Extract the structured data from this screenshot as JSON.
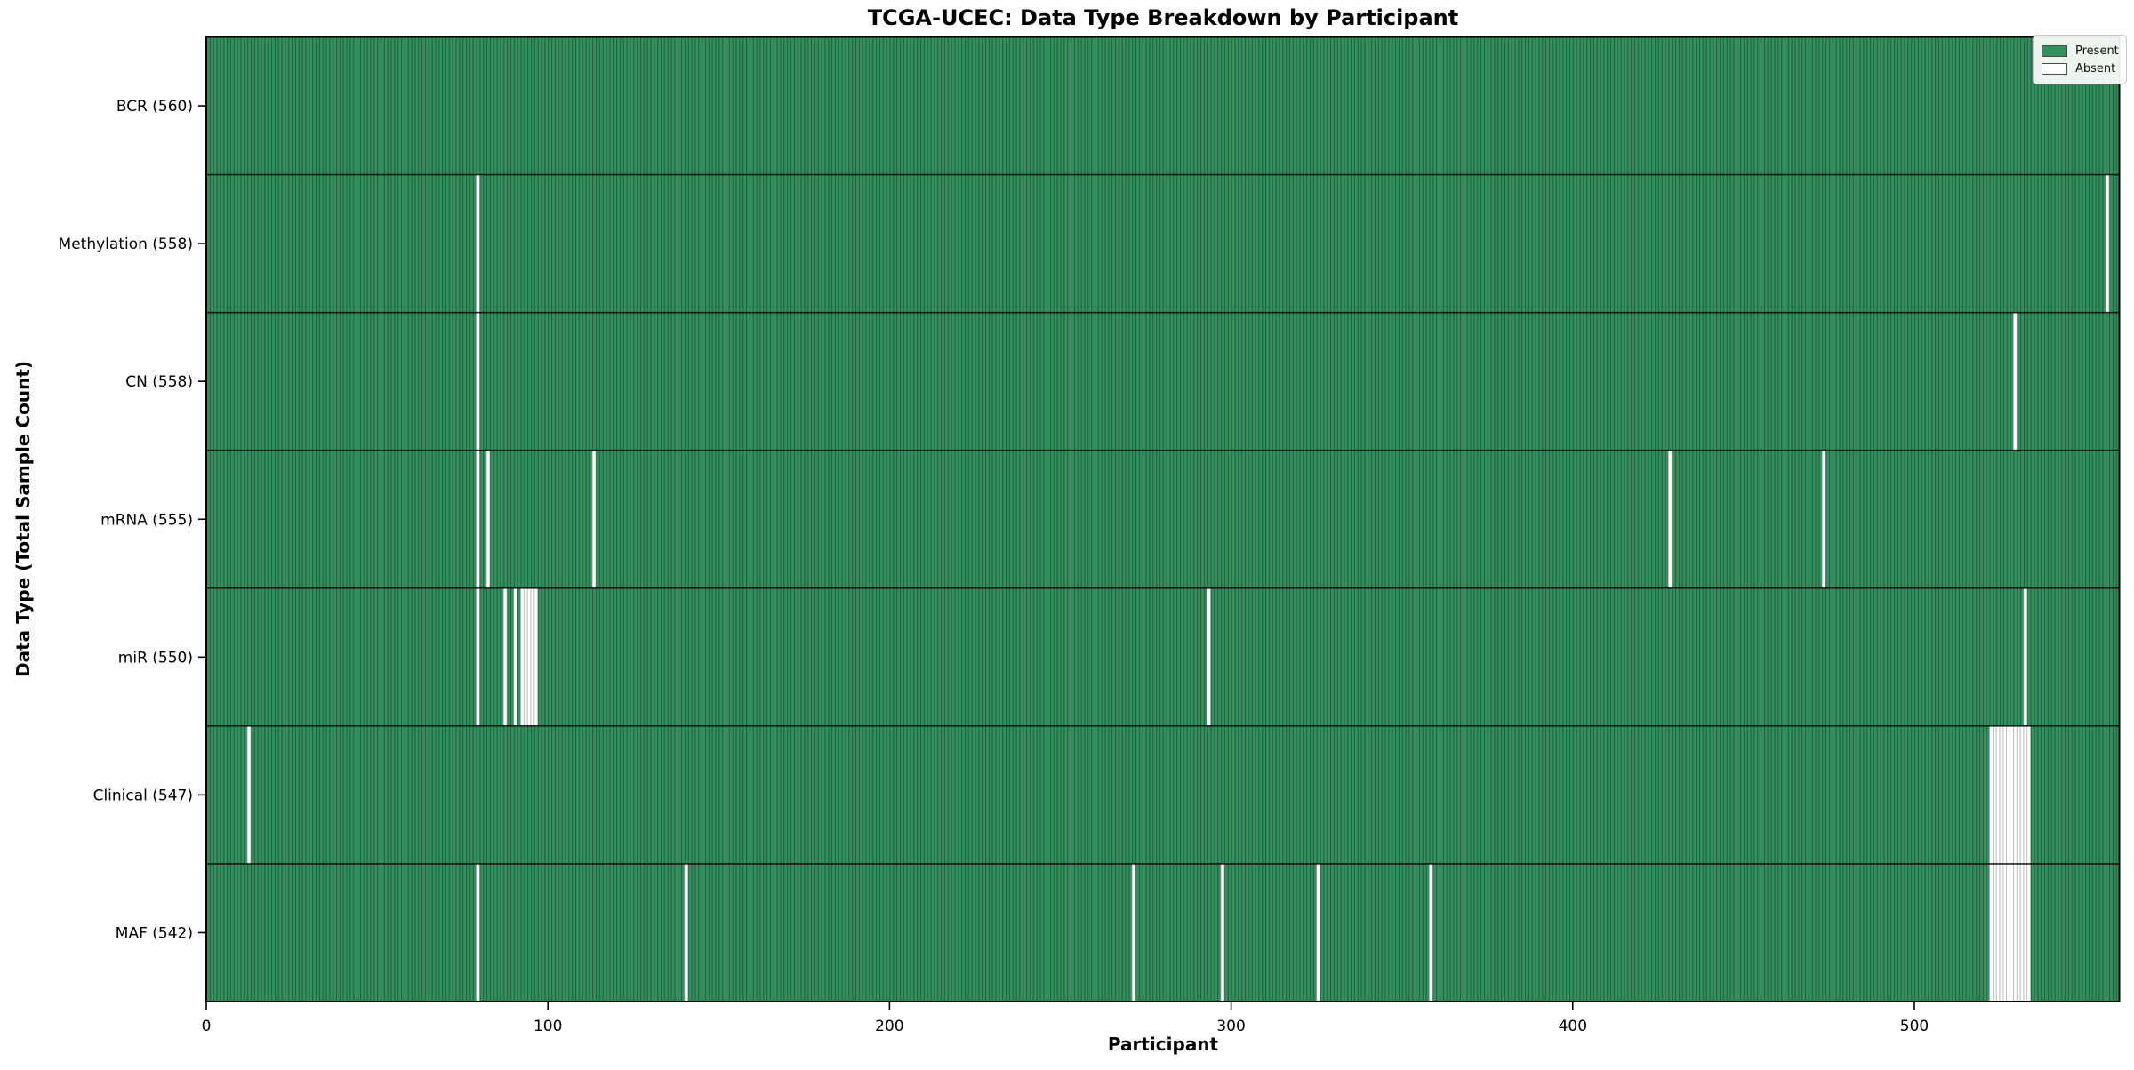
{
  "title": "TCGA-UCEC: Data Type Breakdown by Participant",
  "x_axis": {
    "label": "Participant",
    "ticks": [
      0,
      100,
      200,
      300,
      400,
      500
    ],
    "range": [
      0,
      560
    ]
  },
  "y_axis": {
    "label": "Data Type (Total Sample Count)"
  },
  "legend": {
    "items": [
      {
        "label": "Present",
        "color": "#34905e"
      },
      {
        "label": "Absent",
        "color": "#ffffff"
      }
    ]
  },
  "colors": {
    "present_fill": "#34905e",
    "bar_edge": "#1f5b3a",
    "absent_fill": "#ffffff",
    "absent_edge": "#a9a9a9",
    "row_separator": "#0d0d0d",
    "spine": "#000000",
    "tick": "#000000"
  },
  "chart_data": {
    "type": "heatmap",
    "subtype": "presence-absence-matrix",
    "title": "TCGA-UCEC: Data Type Breakdown by Participant",
    "xlabel": "Participant",
    "ylabel": "Data Type (Total Sample Count)",
    "xlim": [
      0,
      560
    ],
    "x_ticks": [
      0,
      100,
      200,
      300,
      400,
      500
    ],
    "legend_position": "upper right",
    "grid": false,
    "total_participants": 560,
    "states": {
      "present": "green",
      "absent": "white"
    },
    "rows": [
      {
        "label": "BCR (560)",
        "name": "BCR",
        "count": 560,
        "absent_participants": []
      },
      {
        "label": "Methylation (558)",
        "name": "Methylation",
        "count": 558,
        "absent_participants": [
          79,
          556
        ]
      },
      {
        "label": "CN (558)",
        "name": "CN",
        "count": 558,
        "absent_participants": [
          79,
          529
        ]
      },
      {
        "label": "mRNA (555)",
        "name": "mRNA",
        "count": 555,
        "absent_participants": [
          79,
          82,
          113,
          428,
          473
        ]
      },
      {
        "label": "miR (550)",
        "name": "miR",
        "count": 550,
        "absent_participants": [
          79,
          87,
          90,
          92,
          93,
          94,
          95,
          96,
          293,
          532
        ]
      },
      {
        "label": "Clinical (547)",
        "name": "Clinical",
        "count": 547,
        "absent_participants": [
          12,
          522,
          523,
          524,
          525,
          526,
          527,
          528,
          529,
          530,
          531,
          532,
          533
        ]
      },
      {
        "label": "MAF (542)",
        "name": "MAF",
        "count": 542,
        "absent_participants": [
          79,
          140,
          271,
          297,
          325,
          358,
          522,
          523,
          524,
          525,
          526,
          527,
          528,
          529,
          530,
          531,
          532,
          533
        ]
      }
    ]
  }
}
